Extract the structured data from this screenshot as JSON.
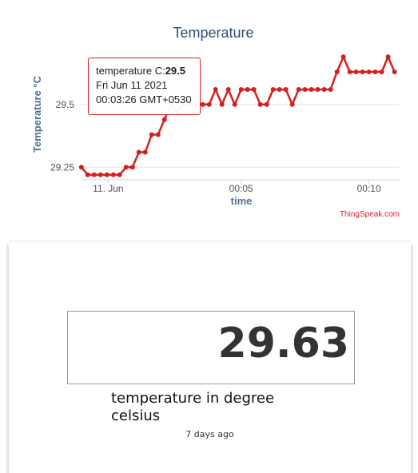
{
  "chart_data": {
    "type": "line",
    "title": "Temperature",
    "xlabel": "time",
    "ylabel": "Temperature °C",
    "y_ticks": [
      "29.25",
      "29.5"
    ],
    "y_tick_values": [
      29.25,
      29.5
    ],
    "ylim": [
      29.2,
      29.7
    ],
    "x_ticks": [
      "11. Jun",
      "00:05",
      "00:10"
    ],
    "x_tick_values": [
      -5.4,
      5.0,
      15.0
    ],
    "xlim": [
      -7.55,
      17.4
    ],
    "series": [
      {
        "name": "temperature C",
        "color": "#d62020",
        "x": [
          -7.5,
          -7.0,
          -6.5,
          -6.0,
          -5.5,
          -5.0,
          -4.5,
          -4.0,
          -3.5,
          -3.0,
          -2.5,
          -2.0,
          -1.5,
          -1.0,
          -0.5,
          0.0,
          0.5,
          1.0,
          1.5,
          2.0,
          2.5,
          3.0,
          3.5,
          4.0,
          4.5,
          5.0,
          5.5,
          6.0,
          6.5,
          7.0,
          7.5,
          8.0,
          8.5,
          9.0,
          9.5,
          10.0,
          10.5,
          11.0,
          11.5,
          12.0,
          12.5,
          13.0,
          13.5,
          14.0,
          14.5,
          15.0,
          15.5,
          16.0,
          16.5,
          17.0
        ],
        "y": [
          29.25,
          29.22,
          29.22,
          29.22,
          29.22,
          29.22,
          29.22,
          29.25,
          29.25,
          29.31,
          29.31,
          29.38,
          29.38,
          29.44,
          29.5,
          29.47,
          29.5,
          29.5,
          29.5,
          29.5,
          29.5,
          29.56,
          29.5,
          29.56,
          29.5,
          29.56,
          29.56,
          29.56,
          29.5,
          29.5,
          29.56,
          29.56,
          29.56,
          29.5,
          29.56,
          29.56,
          29.56,
          29.56,
          29.56,
          29.56,
          29.63,
          29.69,
          29.63,
          29.63,
          29.63,
          29.63,
          29.63,
          29.63,
          29.69,
          29.63
        ]
      }
    ],
    "tooltip": {
      "series_label": "temperature C:",
      "value": "29.5",
      "date": "Fri Jun 11 2021",
      "time": "00:03:26 GMT+0530"
    },
    "credit": "ThingSpeak.com"
  },
  "widget": {
    "value": "29.63",
    "label": "temperature in degree celsius",
    "updated": "7 days ago"
  },
  "colors": {
    "line": "#d62020",
    "title": "#2e4e6f",
    "axis_title": "#4f6f96",
    "credit": "#d62020"
  }
}
